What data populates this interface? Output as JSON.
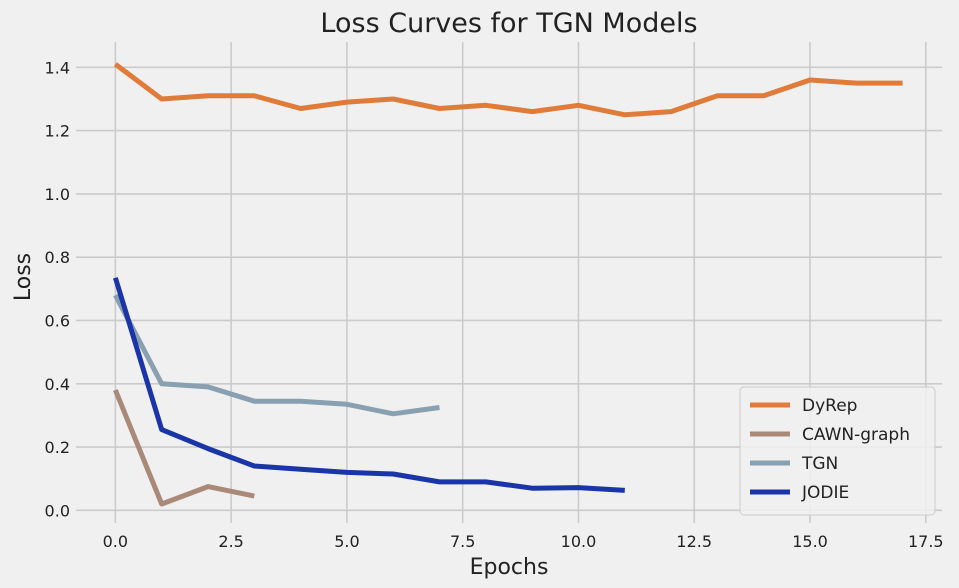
{
  "chart_data": {
    "type": "line",
    "title": "Loss Curves for TGN Models",
    "xlabel": "Epochs",
    "ylabel": "Loss",
    "xlim": [
      -0.85,
      17.85
    ],
    "ylim": [
      -0.04,
      1.48
    ],
    "xticks": [
      0.0,
      2.5,
      5.0,
      7.5,
      10.0,
      12.5,
      15.0,
      17.5
    ],
    "xtick_labels": [
      "0.0",
      "2.5",
      "5.0",
      "7.5",
      "10.0",
      "12.5",
      "15.0",
      "17.5"
    ],
    "yticks": [
      0.0,
      0.2,
      0.4,
      0.6,
      0.8,
      1.0,
      1.2,
      1.4
    ],
    "ytick_labels": [
      "0.0",
      "0.2",
      "0.4",
      "0.6",
      "0.8",
      "1.0",
      "1.2",
      "1.4"
    ],
    "grid": true,
    "legend_position": "bottom-right",
    "series": [
      {
        "name": "DyRep",
        "color": "#e07b39",
        "x": [
          0,
          1,
          2,
          3,
          4,
          5,
          6,
          7,
          8,
          9,
          10,
          11,
          12,
          13,
          14,
          15,
          16,
          17
        ],
        "y": [
          1.41,
          1.3,
          1.31,
          1.31,
          1.27,
          1.29,
          1.3,
          1.27,
          1.28,
          1.26,
          1.28,
          1.25,
          1.26,
          1.31,
          1.31,
          1.36,
          1.35,
          1.35
        ]
      },
      {
        "name": "CAWN-graph",
        "color": "#a98a78",
        "x": [
          0,
          1,
          2,
          3
        ],
        "y": [
          0.38,
          0.02,
          0.075,
          0.045
        ]
      },
      {
        "name": "TGN",
        "color": "#89a0b0",
        "x": [
          0,
          1,
          2,
          3,
          4,
          5,
          6,
          7
        ],
        "y": [
          0.68,
          0.4,
          0.39,
          0.345,
          0.345,
          0.335,
          0.305,
          0.325
        ]
      },
      {
        "name": "JODIE",
        "color": "#1a35a8",
        "x": [
          0,
          1,
          2,
          3,
          4,
          5,
          6,
          7,
          8,
          9,
          10,
          11
        ],
        "y": [
          0.735,
          0.255,
          0.195,
          0.14,
          0.13,
          0.12,
          0.115,
          0.09,
          0.09,
          0.07,
          0.072,
          0.063
        ]
      }
    ]
  }
}
